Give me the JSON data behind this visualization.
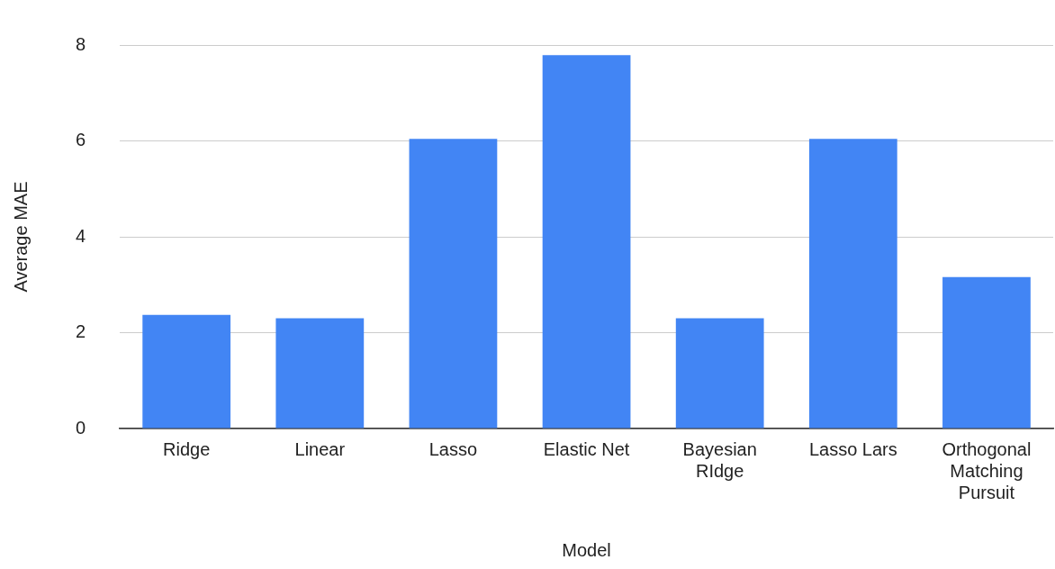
{
  "chart_data": {
    "type": "bar",
    "xlabel": "Model",
    "ylabel": "Average MAE",
    "categories": [
      "Ridge",
      "Linear",
      "Lasso",
      "Elastic Net",
      "Bayesian RIdge",
      "Lasso Lars",
      "Orthogonal Matching Pursuit"
    ],
    "values": [
      2.37,
      2.3,
      6.04,
      7.79,
      2.3,
      6.04,
      3.16
    ],
    "color": "#4285f4",
    "ylim": [
      0,
      8
    ],
    "yticks": [
      0,
      2,
      4,
      6,
      8
    ],
    "grid": "y",
    "legend": false
  }
}
